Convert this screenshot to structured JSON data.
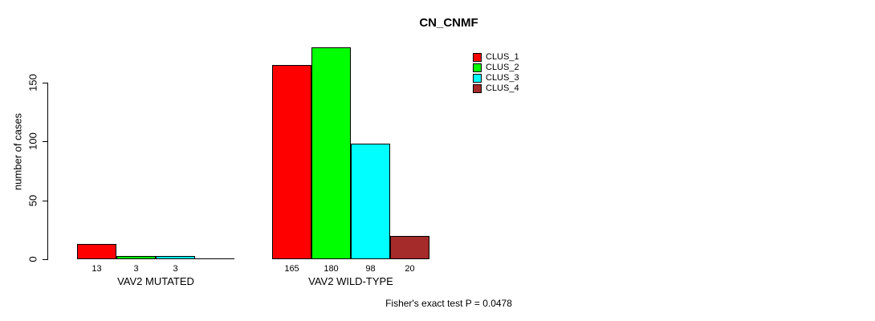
{
  "title": "CN_CNMF",
  "footer": "Fisher's exact test P = 0.0478",
  "legend": [
    {
      "label": "CLUS_1",
      "color": "#FF0000"
    },
    {
      "label": "CLUS_2",
      "color": "#00FF00"
    },
    {
      "label": "CLUS_3",
      "color": "#00FFFF"
    },
    {
      "label": "CLUS_4",
      "color": "#A52A2A"
    }
  ],
  "chart_data": {
    "type": "bar",
    "grouped": true,
    "title": "CN_CNMF",
    "ylabel": "number of cases",
    "xlabel": "",
    "categories": [
      "VAV2 MUTATED",
      "VAV2 WILD-TYPE"
    ],
    "series": [
      {
        "name": "CLUS_1",
        "color": "#FF0000",
        "values": [
          13,
          165
        ]
      },
      {
        "name": "CLUS_2",
        "color": "#00FF00",
        "values": [
          3,
          180
        ]
      },
      {
        "name": "CLUS_3",
        "color": "#00FFFF",
        "values": [
          3,
          98
        ]
      },
      {
        "name": "CLUS_4",
        "color": "#A52A2A",
        "values": [
          0,
          20
        ]
      }
    ],
    "bar_value_labels": [
      [
        "13",
        "3",
        "3",
        ""
      ],
      [
        "165",
        "180",
        "98",
        "20"
      ]
    ],
    "yticks": [
      0,
      50,
      100,
      150
    ],
    "ylim": [
      0,
      185
    ],
    "grid": false,
    "legend_position": "top-right",
    "annotation": "Fisher's exact test P = 0.0478"
  }
}
